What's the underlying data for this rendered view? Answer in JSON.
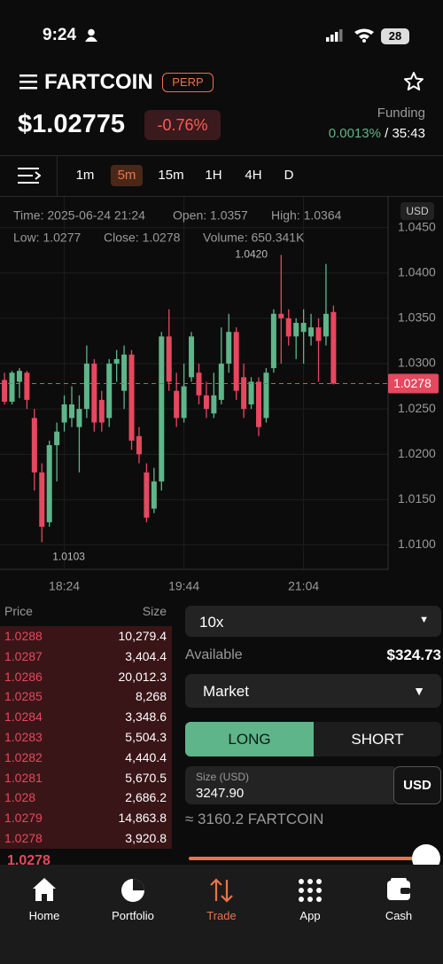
{
  "status_bar": {
    "time": "9:24",
    "battery": "28"
  },
  "header": {
    "symbol": "FARTCOIN",
    "badge": "PERP",
    "price": "$1.02775",
    "change": "-0.76%",
    "funding_label": "Funding",
    "funding_rate": "0.0013%",
    "separator": "/",
    "funding_countdown": "35:43"
  },
  "timeframes": {
    "items": [
      "1m",
      "5m",
      "15m",
      "1H",
      "4H",
      "D"
    ],
    "selected": 1
  },
  "chart": {
    "type": "candlestick",
    "currency": "USD",
    "info": [
      "Time: 2025-06-24 21:24",
      "Open: 1.0357",
      "High: 1.0364",
      "Low: 1.0277",
      "Close: 1.0278",
      "Volume: 650.341K"
    ],
    "up_color": "#5fb58a",
    "down_color": "#e5485f",
    "open": [
      1.0282,
      1.0258,
      1.028,
      1.029,
      1.024,
      1.018,
      1.0125,
      1.021,
      1.0235,
      1.024,
      1.023,
      1.025,
      1.03,
      1.026,
      1.024,
      1.03,
      1.027,
      1.031,
      1.022,
      1.018,
      1.014,
      1.017,
      1.033,
      1.027,
      1.024,
      1.0285,
      1.029,
      1.0265,
      1.0245,
      1.026,
      1.03,
      1.0335,
      1.0285,
      1.0255,
      1.028,
      1.024,
      1.0295,
      1.0355,
      1.035,
      1.033,
      1.0335,
      1.033,
      1.034,
      1.033,
      1.0357
    ],
    "high": [
      1.029,
      1.0292,
      1.0295,
      1.0292,
      1.025,
      1.019,
      1.0215,
      1.0235,
      1.0265,
      1.0275,
      1.0265,
      1.032,
      1.0305,
      1.027,
      1.0305,
      1.0315,
      1.032,
      1.0315,
      1.023,
      1.019,
      1.0185,
      1.0335,
      1.036,
      1.029,
      1.03,
      1.0335,
      1.03,
      1.028,
      1.029,
      1.034,
      1.0355,
      1.034,
      1.03,
      1.0285,
      1.0285,
      1.0295,
      1.036,
      1.042,
      1.036,
      1.035,
      1.036,
      1.0355,
      1.035,
      1.041,
      1.0364
    ],
    "low": [
      1.0255,
      1.0255,
      1.0262,
      1.025,
      1.016,
      1.0103,
      1.012,
      1.017,
      1.0225,
      1.023,
      1.018,
      1.024,
      1.0225,
      1.0225,
      1.023,
      1.028,
      1.025,
      1.0205,
      1.019,
      1.0125,
      1.0135,
      1.016,
      1.027,
      1.023,
      1.0235,
      1.028,
      1.0255,
      1.024,
      1.024,
      1.0255,
      1.029,
      1.026,
      1.024,
      1.025,
      1.022,
      1.0235,
      1.029,
      1.03,
      1.032,
      1.0305,
      1.03,
      1.032,
      1.028,
      1.032,
      1.0277
    ],
    "close": [
      1.0258,
      1.029,
      1.0292,
      1.026,
      1.018,
      1.012,
      1.021,
      1.0225,
      1.0255,
      1.0255,
      1.025,
      1.03,
      1.0235,
      1.0235,
      1.03,
      1.0305,
      1.031,
      1.0215,
      1.02,
      1.013,
      1.017,
      1.033,
      1.028,
      1.024,
      1.0275,
      1.033,
      1.0265,
      1.025,
      1.0265,
      1.03,
      1.0335,
      1.027,
      1.025,
      1.028,
      1.023,
      1.029,
      1.0355,
      1.035,
      1.033,
      1.0345,
      1.0345,
      1.034,
      1.0325,
      1.0355,
      1.0278
    ],
    "max_label": "1.0420",
    "min_label": "1.0103",
    "last_price": {
      "value": 1.0278,
      "label": "1.0278"
    },
    "xlim": [
      -0.6,
      51.3
    ],
    "xticks": [
      {
        "value": 8,
        "label": "18:24"
      },
      {
        "value": 24,
        "label": "19:44"
      },
      {
        "value": 40,
        "label": "21:04"
      }
    ],
    "ylim": [
      1.0073,
      1.0484
    ],
    "yticks": [
      {
        "value": 1.045,
        "label": "1.0450"
      },
      {
        "value": 1.04,
        "label": "1.0400"
      },
      {
        "value": 1.035,
        "label": "1.0350"
      },
      {
        "value": 1.03,
        "label": "1.0300"
      },
      {
        "value": 1.025,
        "label": "1.0250"
      },
      {
        "value": 1.02,
        "label": "1.0200"
      },
      {
        "value": 1.015,
        "label": "1.0150"
      },
      {
        "value": 1.01,
        "label": "1.0100"
      }
    ],
    "grid": true
  },
  "order_book": {
    "headers": [
      "Price",
      "Size"
    ],
    "rows": [
      [
        "1.0288",
        "10,279.4"
      ],
      [
        "1.0287",
        "3,404.4"
      ],
      [
        "1.0286",
        "20,012.3"
      ],
      [
        "1.0285",
        "8,268"
      ],
      [
        "1.0284",
        "3,348.6"
      ],
      [
        "1.0283",
        "5,504.3"
      ],
      [
        "1.0282",
        "4,440.4"
      ],
      [
        "1.0281",
        "5,670.5"
      ],
      [
        "1.028",
        "2,686.2"
      ],
      [
        "1.0279",
        "14,863.8"
      ],
      [
        "1.0278",
        "3,920.8"
      ]
    ],
    "mid_price": "1.0278"
  },
  "order_form": {
    "leverage": "10x",
    "available_label": "Available",
    "available": "$324.73",
    "order_type": "Market",
    "long": "LONG",
    "short": "SHORT",
    "size_label": "Size (USD)",
    "size": "3247.90",
    "size_unit": "USD",
    "estimate": "≈ 3160.2 FARTCOIN"
  },
  "nav": [
    "Home",
    "Portfolio",
    "Trade",
    "App",
    "Cash"
  ]
}
